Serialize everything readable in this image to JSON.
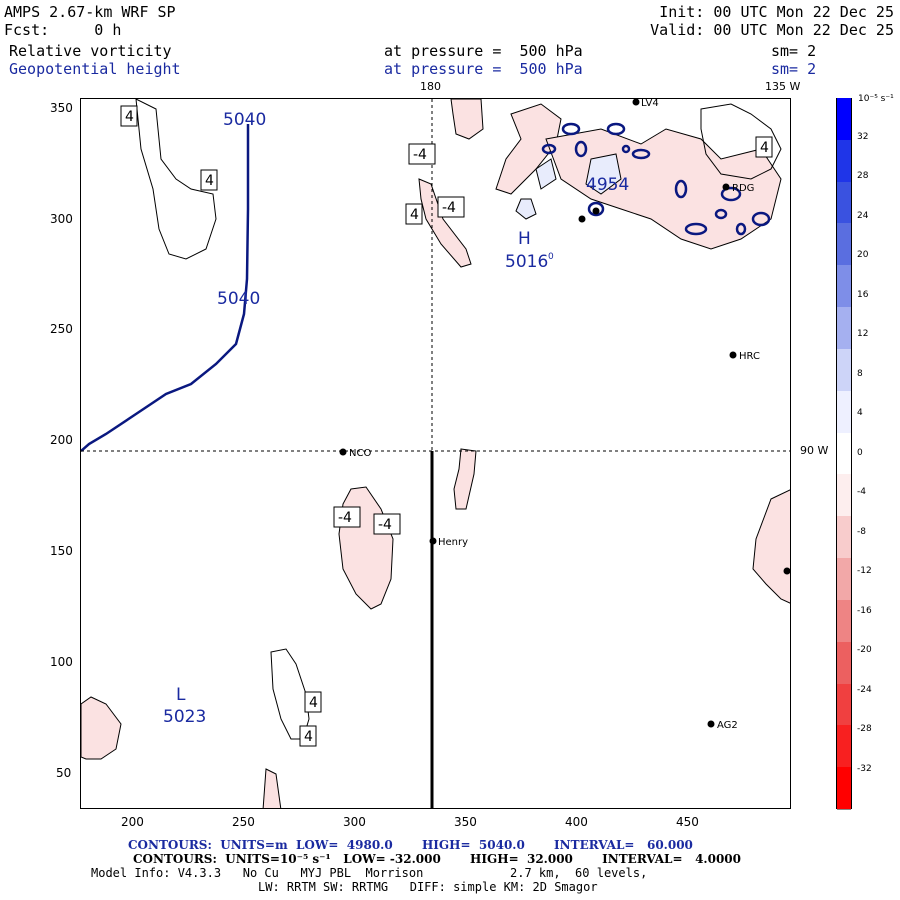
{
  "header": {
    "model_line": "AMPS 2.67-km WRF SP",
    "init_line": "Init: 00 UTC Mon 22 Dec 25",
    "fcst_line": "Fcst:     0 h",
    "valid_line": "Valid: 00 UTC Mon 22 Dec 25",
    "field1_name": "Relative vorticity",
    "field1_level": "at pressure =  500 hPa",
    "field1_sm": "sm= 2",
    "field2_name": "Geopotential height",
    "field2_level": "at pressure =  500 hPa",
    "field2_sm": "sm= 2"
  },
  "map": {
    "meridian_top_label": "180",
    "meridian_135_label": "135 W",
    "meridian_90_label": "90 W",
    "x_ticks": [
      "200",
      "250",
      "300",
      "350",
      "400",
      "450"
    ],
    "y_ticks": [
      "350",
      "300",
      "250",
      "200",
      "150",
      "100",
      "50"
    ],
    "stations": [
      "NCO",
      "Henry",
      "HRC",
      "AG2",
      "RDG",
      "LV4"
    ],
    "height_labels": {
      "contour_5040_top": "5040",
      "contour_5040_mid": "5040",
      "high_label": "H",
      "high_value": "5016",
      "high_value_superscript": "0",
      "low_label": "L",
      "low_value": "5023",
      "value_4954": "4954"
    },
    "vorticity_labels": [
      "4",
      "4",
      "-4",
      "-4",
      "4",
      "4",
      "-4",
      "-4",
      "4",
      "4"
    ]
  },
  "colorbar": {
    "unit_label": "10⁻⁵ s⁻¹",
    "ticks": [
      "32",
      "28",
      "24",
      "20",
      "16",
      "12",
      "8",
      "4",
      "0",
      "-4",
      "-8",
      "-12",
      "-16",
      "-20",
      "-24",
      "-28",
      "-32"
    ],
    "colors": [
      "#0000ff",
      "#1f35e8",
      "#3a52e0",
      "#5a6ee0",
      "#7e8ee8",
      "#a5b0f0",
      "#cdd4f8",
      "#eef0ff",
      "#ffffff",
      "#fdeeee",
      "#f8cccc",
      "#f2a8a8",
      "#ee8484",
      "#ec6060",
      "#f04040",
      "#f82020",
      "#ff0000"
    ]
  },
  "footer": {
    "line1": "CONTOURS:  UNITS=m  LOW=  4980.0       HIGH=  5040.0       INTERVAL=   60.000",
    "line2": "CONTOURS:  UNITS=10⁻⁵ s⁻¹   LOW= -32.000       HIGH=  32.000       INTERVAL=   4.0000",
    "line3": "Model Info: V4.3.3   No Cu   MYJ PBL  Morrison            2.7 km,  60 levels,",
    "line4": "LW: RRTM SW: RRTMG   DIFF: simple KM: 2D Smagor"
  }
}
